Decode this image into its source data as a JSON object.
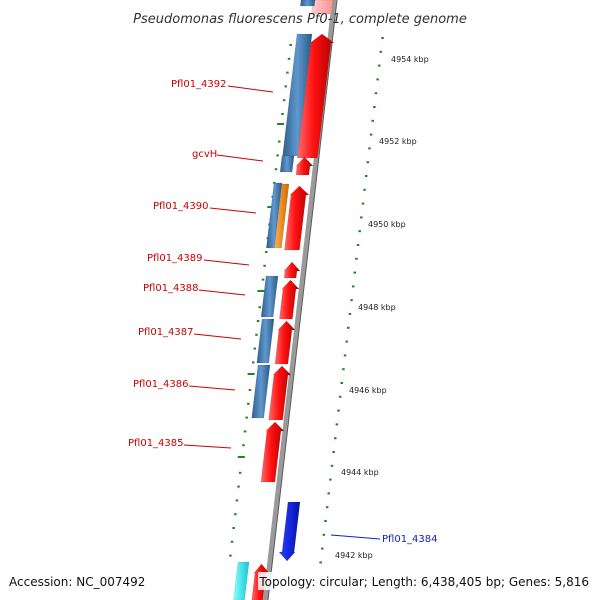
{
  "title": "Pseudomonas fluorescens Pf0-1, complete genome",
  "footer": {
    "accession": "Accession: NC_007492",
    "stats": "Topology: circular; Length: 6,438,405 bp; Genes: 5,816"
  },
  "colors": {
    "background": "#ffffff",
    "backbone": "#8c8c8c",
    "tick": "#1a8a1a",
    "forward_gene": "#e81818",
    "reverse_gene": "#3f7fb8",
    "rna_gene": "#f08c18",
    "other_gene": "#18e8e8",
    "highlight_gene": "#1020e0",
    "label_red": "#cc0000",
    "label_blue": "#1020cc"
  },
  "scale_labels": [
    "4954 kbp",
    "4952 kbp",
    "4950 kbp",
    "4948 kbp",
    "4946 kbp",
    "4944 kbp",
    "4942 kbp"
  ],
  "gene_labels": [
    {
      "text": "Pfl01_4392",
      "color": "red"
    },
    {
      "text": "gcvH",
      "color": "red"
    },
    {
      "text": "Pfl01_4390",
      "color": "red"
    },
    {
      "text": "Pfl01_4389",
      "color": "red"
    },
    {
      "text": "Pfl01_4388",
      "color": "red"
    },
    {
      "text": "Pfl01_4387",
      "color": "red"
    },
    {
      "text": "Pfl01_4386",
      "color": "red"
    },
    {
      "text": "Pfl01_4385",
      "color": "red"
    },
    {
      "text": "Pfl01_4384",
      "color": "blue"
    }
  ]
}
